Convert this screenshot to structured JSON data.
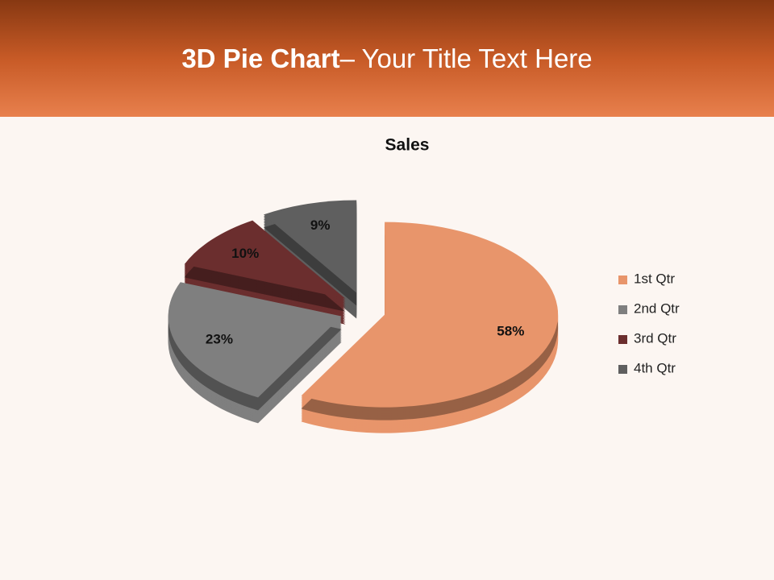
{
  "slide_title": {
    "bold": "3D Pie Chart",
    "rest": "– Your Title Text Here"
  },
  "chart_data": {
    "type": "pie",
    "title": "Sales",
    "series": [
      {
        "name": "1st Qtr",
        "color": "#e8956b"
      },
      {
        "name": "2nd Qtr",
        "color": "#7f7f7f"
      },
      {
        "name": "3rd Qtr",
        "color": "#6b2e2e"
      },
      {
        "name": "4th Qtr",
        "color": "#5f5f5f"
      }
    ],
    "values": [
      58,
      23,
      10,
      9
    ],
    "value_labels": [
      "58%",
      "23%",
      "10%",
      "9%"
    ],
    "legend": "right"
  }
}
